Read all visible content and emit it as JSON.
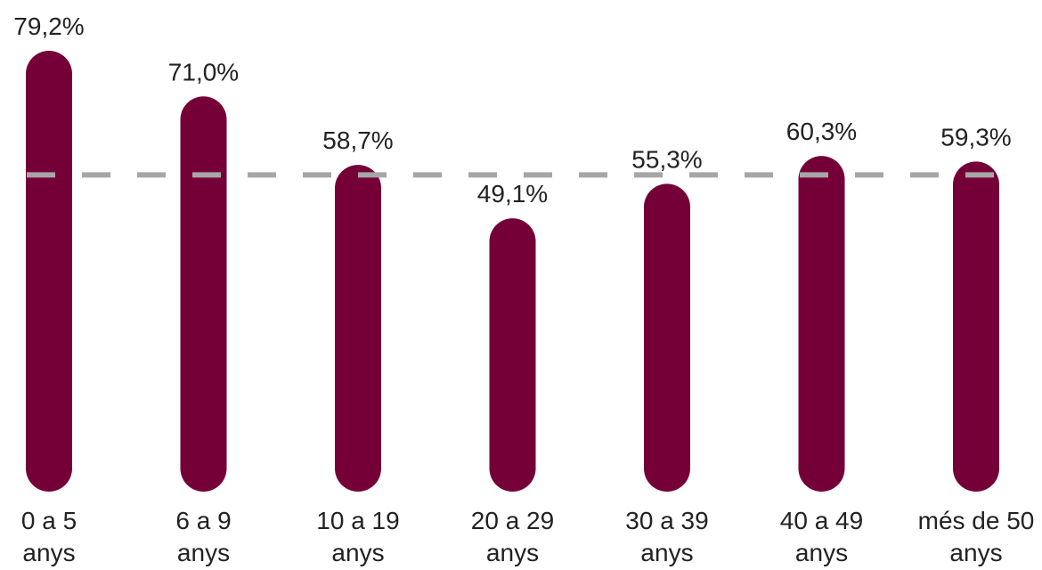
{
  "chart_data": {
    "type": "bar",
    "categories": [
      [
        "0 a 5",
        "anys"
      ],
      [
        "6 a 9",
        "anys"
      ],
      [
        "10 a 19",
        "anys"
      ],
      [
        "20 a 29",
        "anys"
      ],
      [
        "30 a 39",
        "anys"
      ],
      [
        "40 a 49",
        "anys"
      ],
      [
        "més de 50",
        "anys"
      ]
    ],
    "values": [
      79.2,
      71.0,
      58.7,
      49.1,
      55.3,
      60.3,
      59.3
    ],
    "value_labels": [
      "79,2%",
      "71,0%",
      "58,7%",
      "49,1%",
      "55,3%",
      "60,3%",
      "59,3%"
    ],
    "reference_line": {
      "value": 56.9,
      "style": "dashed"
    },
    "ylim": [
      0,
      80
    ],
    "grid": false,
    "legend": "none",
    "title": "",
    "xlabel": "",
    "ylabel": "",
    "colors": {
      "bar": "#750037",
      "reference_line": "#a6a6a6"
    }
  }
}
